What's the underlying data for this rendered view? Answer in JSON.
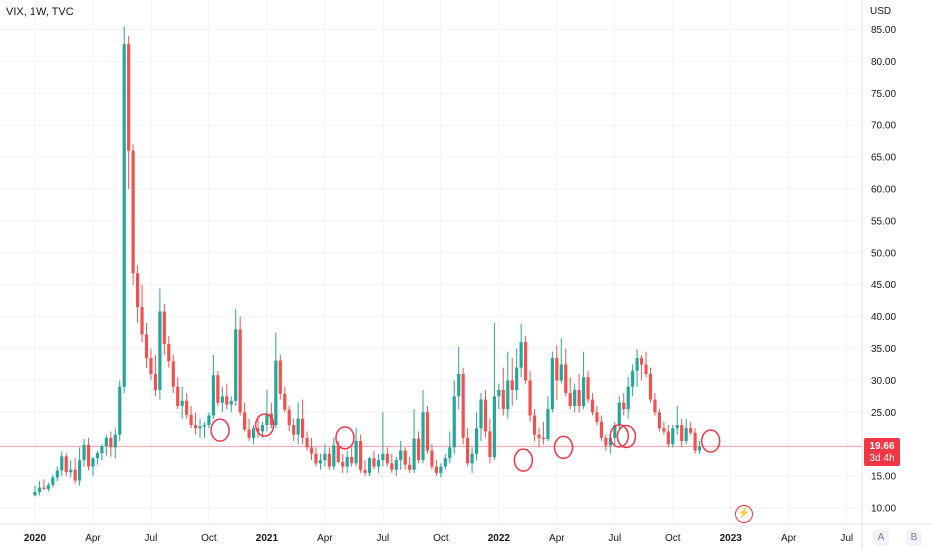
{
  "header": {
    "title": "VIX, 1W, TVC"
  },
  "currency": "USD",
  "last_price": {
    "value": "19.66",
    "countdown": "3d 4h",
    "numeric": 19.66
  },
  "scale_buttons": {
    "auto": "A",
    "log": "B"
  },
  "colors": {
    "up": "#26a69a",
    "down": "#ef5350",
    "grid": "#f0f3fa",
    "axis_text": "#131722",
    "marker": "#f23645",
    "price_line": "#f7a1a7"
  },
  "chart_data": {
    "type": "candlestick",
    "title": "VIX, 1W, TVC",
    "ylabel": "USD",
    "ylim": [
      5.0,
      88.0
    ],
    "y_ticks": [
      "10.00",
      "15.00",
      "20.00",
      "25.00",
      "30.00",
      "35.00",
      "40.00",
      "45.00",
      "50.00",
      "55.00",
      "60.00",
      "65.00",
      "70.00",
      "75.00",
      "80.00",
      "85.00"
    ],
    "x_ticks": [
      {
        "label": "2020",
        "week": 0
      },
      {
        "label": "Apr",
        "week": 13
      },
      {
        "label": "Jul",
        "week": 26
      },
      {
        "label": "Oct",
        "week": 39
      },
      {
        "label": "2021",
        "week": 52
      },
      {
        "label": "Apr",
        "week": 65
      },
      {
        "label": "Jul",
        "week": 78
      },
      {
        "label": "Oct",
        "week": 91
      },
      {
        "label": "2022",
        "week": 104
      },
      {
        "label": "Apr",
        "week": 117
      },
      {
        "label": "Jul",
        "week": 130
      },
      {
        "label": "Oct",
        "week": 143
      },
      {
        "label": "2023",
        "week": 156
      },
      {
        "label": "Apr",
        "week": 169
      },
      {
        "label": "Jul",
        "week": 182
      }
    ],
    "candles_ohlc": [
      [
        12.0,
        13.5,
        11.8,
        12.5
      ],
      [
        12.5,
        14.2,
        12.0,
        13.2
      ],
      [
        13.2,
        14.5,
        12.8,
        13.0
      ],
      [
        13.0,
        14.0,
        12.6,
        13.6
      ],
      [
        13.6,
        15.2,
        13.2,
        14.8
      ],
      [
        14.8,
        16.5,
        14.2,
        15.9
      ],
      [
        15.9,
        18.9,
        15.0,
        18.1
      ],
      [
        18.1,
        18.6,
        15.0,
        15.6
      ],
      [
        15.6,
        17.5,
        14.8,
        16.0
      ],
      [
        16.0,
        17.8,
        13.8,
        14.3
      ],
      [
        14.3,
        19.5,
        13.5,
        17.5
      ],
      [
        17.5,
        20.8,
        16.5,
        19.9
      ],
      [
        19.9,
        21.0,
        15.9,
        16.5
      ],
      [
        16.5,
        18.0,
        15.0,
        17.8
      ],
      [
        17.8,
        19.0,
        16.8,
        18.6
      ],
      [
        18.6,
        20.0,
        17.5,
        19.7
      ],
      [
        19.7,
        21.5,
        18.2,
        21.0
      ],
      [
        21.0,
        22.0,
        18.0,
        19.5
      ],
      [
        19.5,
        22.5,
        17.8,
        21.5
      ],
      [
        21.5,
        30.0,
        20.5,
        29.0
      ],
      [
        29.0,
        85.47,
        28.0,
        82.7
      ],
      [
        82.7,
        84.0,
        60.0,
        66.0
      ],
      [
        66.0,
        67.0,
        45.0,
        46.8
      ],
      [
        46.8,
        48.0,
        39.0,
        41.5
      ],
      [
        41.5,
        45.0,
        36.0,
        37.2
      ],
      [
        37.2,
        39.0,
        32.0,
        33.5
      ],
      [
        33.5,
        35.0,
        30.0,
        31.0
      ],
      [
        31.0,
        34.0,
        27.5,
        28.5
      ],
      [
        28.5,
        44.4,
        27.0,
        40.8
      ],
      [
        40.8,
        42.0,
        34.0,
        35.7
      ],
      [
        35.7,
        37.0,
        32.0,
        33.0
      ],
      [
        33.0,
        34.0,
        28.0,
        29.0
      ],
      [
        29.0,
        30.5,
        25.5,
        26.0
      ],
      [
        26.0,
        29.0,
        24.0,
        26.8
      ],
      [
        26.8,
        28.0,
        24.0,
        24.6
      ],
      [
        24.6,
        26.0,
        22.5,
        23.0
      ],
      [
        23.0,
        25.0,
        21.5,
        22.5
      ],
      [
        22.5,
        24.0,
        21.0,
        22.8
      ],
      [
        22.8,
        23.5,
        21.0,
        23.0
      ],
      [
        23.0,
        25.0,
        22.5,
        24.5
      ],
      [
        24.5,
        34.0,
        24.0,
        30.8
      ],
      [
        30.8,
        31.5,
        26.0,
        26.5
      ],
      [
        26.5,
        29.0,
        25.0,
        27.5
      ],
      [
        27.5,
        29.5,
        25.5,
        26.2
      ],
      [
        26.2,
        27.5,
        25.0,
        26.8
      ],
      [
        26.8,
        41.2,
        26.0,
        38.0
      ],
      [
        38.0,
        40.0,
        24.5,
        25.0
      ],
      [
        25.0,
        26.5,
        22.0,
        22.3
      ],
      [
        22.3,
        24.0,
        20.5,
        21.0
      ],
      [
        21.0,
        23.0,
        20.0,
        22.5
      ],
      [
        22.5,
        24.5,
        21.0,
        22.0
      ],
      [
        22.0,
        23.5,
        21.0,
        23.0
      ],
      [
        23.0,
        28.5,
        22.0,
        24.8
      ],
      [
        24.8,
        26.5,
        22.5,
        23.0
      ],
      [
        23.0,
        37.5,
        22.5,
        33.1
      ],
      [
        33.1,
        34.0,
        27.0,
        27.9
      ],
      [
        27.9,
        29.0,
        25.0,
        25.4
      ],
      [
        25.4,
        26.0,
        22.0,
        23.0
      ],
      [
        23.0,
        24.0,
        20.5,
        21.5
      ],
      [
        21.5,
        26.5,
        20.0,
        24.0
      ],
      [
        24.0,
        27.0,
        20.0,
        21.0
      ],
      [
        21.0,
        22.0,
        19.0,
        19.5
      ],
      [
        19.5,
        21.0,
        17.5,
        18.5
      ],
      [
        18.5,
        19.5,
        16.5,
        17.0
      ],
      [
        17.0,
        18.5,
        16.0,
        17.5
      ],
      [
        17.5,
        20.0,
        16.5,
        18.5
      ],
      [
        18.5,
        19.5,
        16.0,
        16.5
      ],
      [
        16.5,
        21.0,
        16.0,
        19.8
      ],
      [
        19.8,
        20.5,
        17.0,
        17.2
      ],
      [
        17.2,
        18.5,
        15.5,
        16.5
      ],
      [
        16.5,
        19.0,
        15.5,
        18.0
      ],
      [
        18.0,
        19.5,
        16.5,
        17.0
      ],
      [
        17.0,
        22.5,
        16.5,
        20.5
      ],
      [
        20.5,
        21.5,
        15.5,
        16.0
      ],
      [
        16.0,
        17.5,
        15.0,
        15.5
      ],
      [
        15.5,
        18.0,
        15.0,
        17.8
      ],
      [
        17.8,
        19.0,
        16.0,
        16.5
      ],
      [
        16.5,
        18.5,
        15.5,
        17.5
      ],
      [
        17.5,
        25.0,
        16.5,
        18.5
      ],
      [
        18.5,
        19.5,
        16.5,
        17.0
      ],
      [
        17.0,
        18.5,
        15.5,
        16.0
      ],
      [
        16.0,
        18.0,
        15.0,
        17.5
      ],
      [
        17.5,
        20.5,
        16.0,
        19.0
      ],
      [
        19.0,
        19.5,
        16.0,
        16.8
      ],
      [
        16.8,
        18.0,
        15.5,
        16.0
      ],
      [
        16.0,
        25.5,
        15.5,
        20.9
      ],
      [
        20.9,
        22.0,
        17.0,
        17.5
      ],
      [
        17.5,
        28.5,
        17.0,
        25.0
      ],
      [
        25.0,
        26.0,
        18.5,
        19.0
      ],
      [
        19.0,
        20.0,
        16.0,
        16.5
      ],
      [
        16.5,
        17.5,
        15.0,
        15.5
      ],
      [
        15.5,
        17.0,
        14.8,
        16.5
      ],
      [
        16.5,
        18.5,
        16.0,
        17.8
      ],
      [
        17.8,
        22.0,
        17.0,
        19.5
      ],
      [
        19.5,
        30.0,
        18.5,
        27.5
      ],
      [
        27.5,
        35.3,
        25.5,
        31.0
      ],
      [
        31.0,
        32.0,
        20.0,
        21.0
      ],
      [
        21.0,
        22.5,
        16.5,
        17.0
      ],
      [
        17.0,
        19.5,
        15.5,
        18.5
      ],
      [
        18.5,
        25.0,
        17.5,
        22.5
      ],
      [
        22.5,
        28.0,
        20.5,
        27.0
      ],
      [
        27.0,
        28.5,
        21.0,
        22.0
      ],
      [
        22.0,
        24.0,
        17.0,
        18.0
      ],
      [
        18.0,
        39.0,
        17.5,
        27.5
      ],
      [
        27.5,
        29.5,
        25.5,
        28.5
      ],
      [
        28.5,
        32.0,
        24.5,
        25.5
      ],
      [
        25.5,
        34.5,
        24.0,
        30.0
      ],
      [
        30.0,
        33.5,
        26.0,
        28.5
      ],
      [
        28.5,
        35.0,
        27.0,
        32.0
      ],
      [
        32.0,
        38.9,
        30.5,
        36.0
      ],
      [
        36.0,
        37.0,
        29.5,
        30.0
      ],
      [
        30.0,
        31.5,
        23.5,
        24.5
      ],
      [
        24.5,
        25.5,
        20.5,
        21.5
      ],
      [
        21.5,
        22.5,
        19.5,
        21.0
      ],
      [
        21.0,
        23.5,
        20.0,
        20.8
      ],
      [
        20.8,
        27.5,
        20.5,
        25.5
      ],
      [
        25.5,
        34.5,
        25.0,
        33.5
      ],
      [
        33.5,
        35.5,
        27.0,
        30.0
      ],
      [
        30.0,
        36.6,
        29.5,
        32.5
      ],
      [
        32.5,
        35.0,
        27.5,
        28.0
      ],
      [
        28.0,
        30.5,
        25.5,
        26.0
      ],
      [
        26.0,
        29.5,
        25.0,
        28.5
      ],
      [
        28.5,
        31.0,
        25.0,
        26.0
      ],
      [
        26.0,
        34.5,
        25.5,
        30.5
      ],
      [
        30.5,
        31.5,
        26.5,
        27.0
      ],
      [
        27.0,
        28.0,
        24.5,
        25.0
      ],
      [
        25.0,
        26.0,
        23.0,
        23.5
      ],
      [
        23.5,
        24.5,
        20.5,
        21.0
      ],
      [
        21.0,
        21.5,
        19.0,
        19.8
      ],
      [
        19.8,
        21.5,
        18.5,
        21.0
      ],
      [
        21.0,
        23.5,
        20.0,
        23.0
      ],
      [
        23.0,
        27.5,
        22.5,
        26.5
      ],
      [
        26.5,
        28.0,
        24.5,
        25.5
      ],
      [
        25.5,
        30.5,
        24.0,
        29.0
      ],
      [
        29.0,
        32.5,
        27.5,
        31.5
      ],
      [
        31.5,
        34.9,
        29.0,
        33.5
      ],
      [
        33.5,
        34.0,
        30.0,
        32.5
      ],
      [
        32.5,
        34.5,
        30.5,
        31.0
      ],
      [
        31.0,
        32.0,
        26.5,
        27.0
      ],
      [
        27.0,
        28.0,
        24.5,
        25.0
      ],
      [
        25.0,
        25.5,
        22.0,
        22.5
      ],
      [
        22.5,
        23.5,
        21.5,
        22.0
      ],
      [
        22.0,
        23.0,
        19.5,
        20.0
      ],
      [
        20.0,
        23.0,
        19.5,
        22.5
      ],
      [
        22.5,
        26.0,
        21.5,
        23.0
      ],
      [
        23.0,
        24.0,
        19.5,
        20.5
      ],
      [
        20.5,
        24.0,
        20.0,
        22.5
      ],
      [
        22.5,
        23.5,
        21.5,
        21.8
      ],
      [
        21.8,
        22.5,
        18.5,
        19.0
      ],
      [
        19.0,
        20.5,
        18.5,
        19.66
      ]
    ],
    "highlight_circles": [
      {
        "week": 41.5,
        "value": 22.2
      },
      {
        "week": 51.5,
        "value": 23.0
      },
      {
        "week": 69.5,
        "value": 21.0
      },
      {
        "week": 109.5,
        "value": 17.5
      },
      {
        "week": 118.5,
        "value": 19.5
      },
      {
        "week": 131,
        "value": 21.3
      },
      {
        "week": 132.6,
        "value": 21.2
      },
      {
        "week": 151.5,
        "value": 20.5
      }
    ],
    "last_value": 19.66
  }
}
